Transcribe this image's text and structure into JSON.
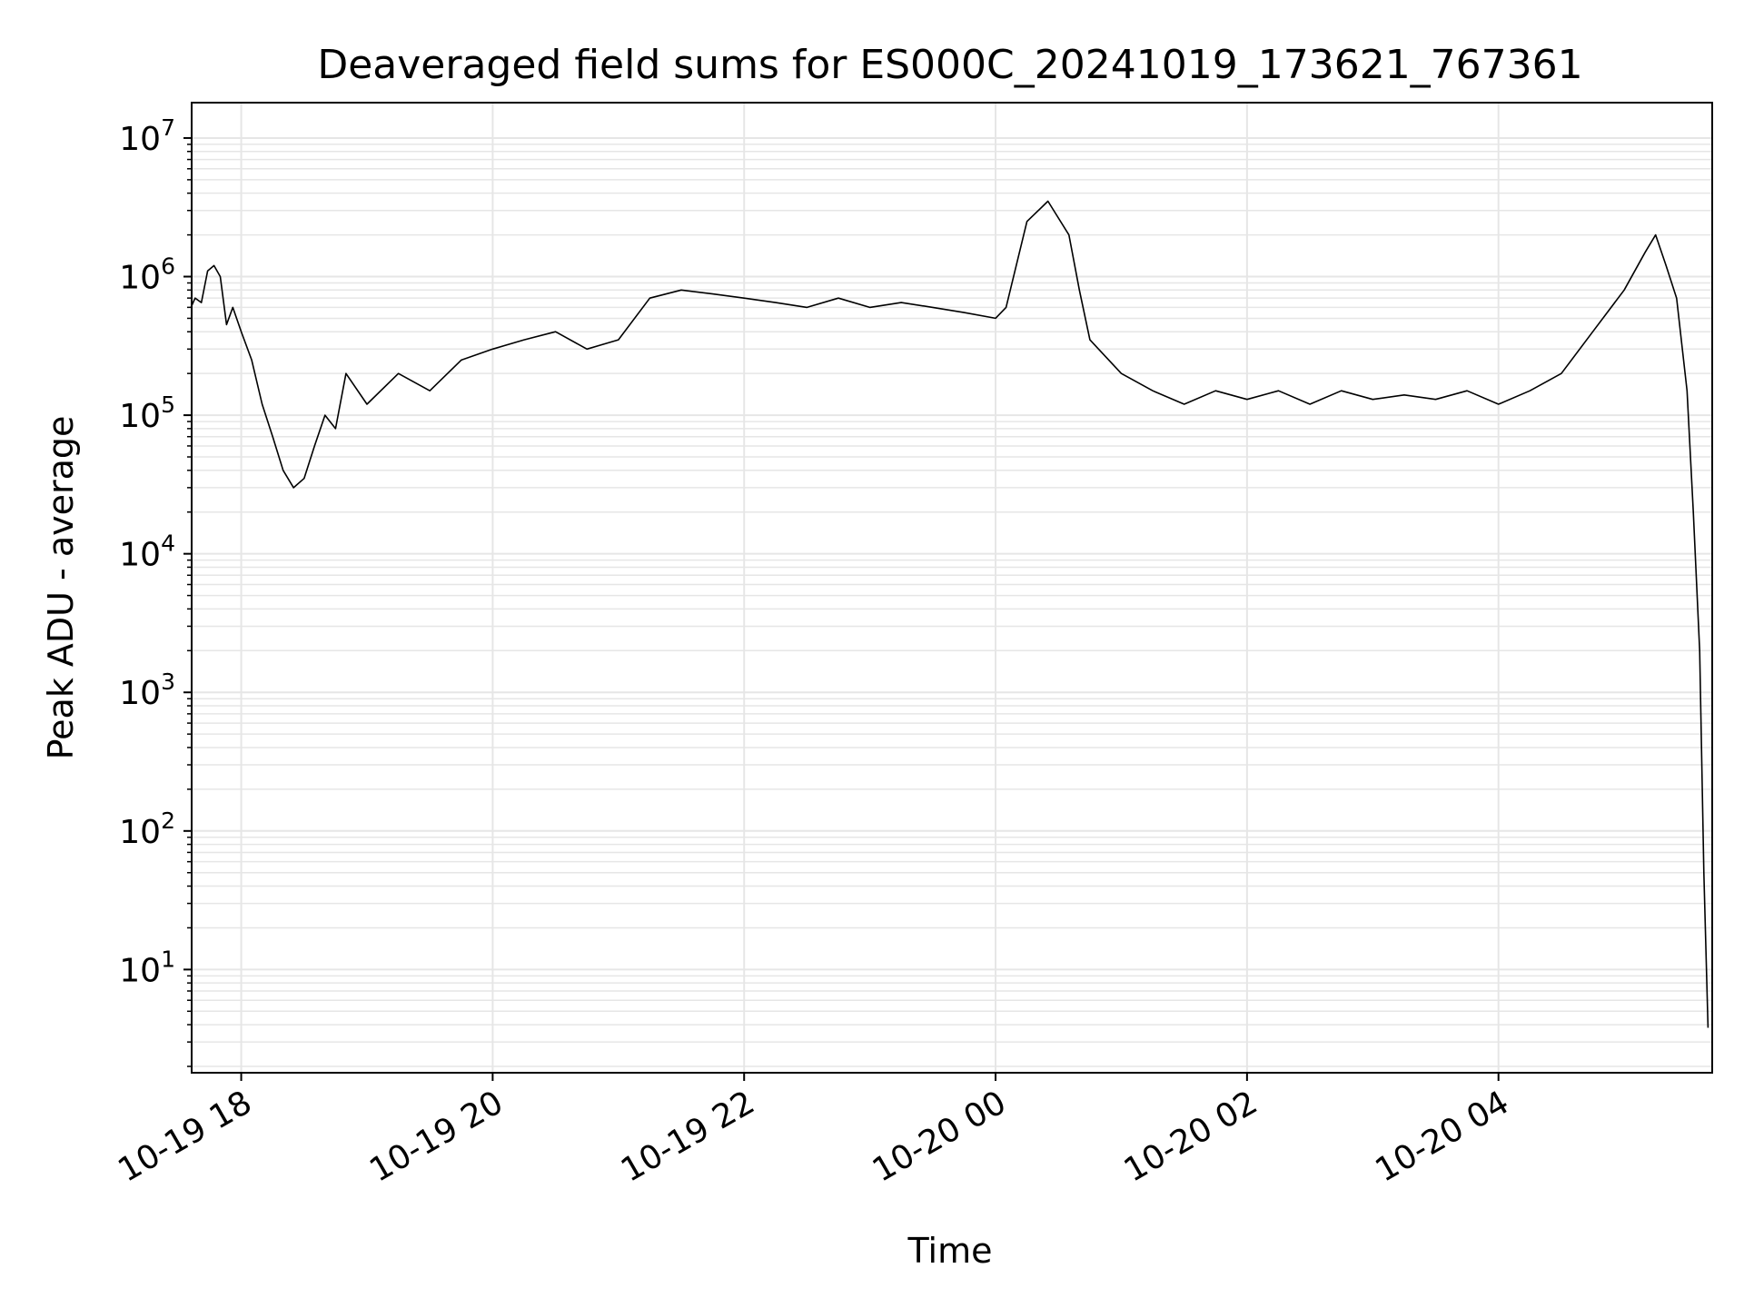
{
  "chart_data": {
    "type": "line",
    "title": "Deaveraged field sums for ES000C_20241019_173621_767361",
    "xlabel": "Time",
    "ylabel": "Peak ADU - average",
    "yscale": "log",
    "ylim": [
      1.8,
      18000000
    ],
    "xlim": [
      "2024-10-19 17:36:21",
      "2024-10-20 05:42:00"
    ],
    "grid": true,
    "line_color": "#000000",
    "grid_color": "#e6e6e6",
    "x_ticks": [
      {
        "t": "2024-10-19 18:00",
        "label": "10-19 18"
      },
      {
        "t": "2024-10-19 20:00",
        "label": "10-19 20"
      },
      {
        "t": "2024-10-19 22:00",
        "label": "10-19 22"
      },
      {
        "t": "2024-10-20 00:00",
        "label": "10-20 00"
      },
      {
        "t": "2024-10-20 02:00",
        "label": "10-20 02"
      },
      {
        "t": "2024-10-20 04:00",
        "label": "10-20 04"
      }
    ],
    "y_ticks": [
      {
        "value": 10,
        "base": "10",
        "exp": "1"
      },
      {
        "value": 100,
        "base": "10",
        "exp": "2"
      },
      {
        "value": 1000,
        "base": "10",
        "exp": "3"
      },
      {
        "value": 10000,
        "base": "10",
        "exp": "4"
      },
      {
        "value": 100000,
        "base": "10",
        "exp": "5"
      },
      {
        "value": 1000000,
        "base": "10",
        "exp": "6"
      },
      {
        "value": 10000000,
        "base": "10",
        "exp": "7"
      }
    ],
    "series": [
      {
        "points": [
          [
            "2024-10-19 17:36",
            600000
          ],
          [
            "2024-10-19 17:38",
            700000
          ],
          [
            "2024-10-19 17:41",
            650000
          ],
          [
            "2024-10-19 17:44",
            1100000
          ],
          [
            "2024-10-19 17:47",
            1200000
          ],
          [
            "2024-10-19 17:50",
            1000000
          ],
          [
            "2024-10-19 17:53",
            450000
          ],
          [
            "2024-10-19 17:56",
            600000
          ],
          [
            "2024-10-19 18:00",
            400000
          ],
          [
            "2024-10-19 18:05",
            250000
          ],
          [
            "2024-10-19 18:10",
            120000
          ],
          [
            "2024-10-19 18:15",
            70000
          ],
          [
            "2024-10-19 18:20",
            40000
          ],
          [
            "2024-10-19 18:25",
            30000
          ],
          [
            "2024-10-19 18:30",
            35000
          ],
          [
            "2024-10-19 18:35",
            60000
          ],
          [
            "2024-10-19 18:40",
            100000
          ],
          [
            "2024-10-19 18:45",
            80000
          ],
          [
            "2024-10-19 18:50",
            200000
          ],
          [
            "2024-10-19 19:00",
            120000
          ],
          [
            "2024-10-19 19:15",
            200000
          ],
          [
            "2024-10-19 19:30",
            150000
          ],
          [
            "2024-10-19 19:45",
            250000
          ],
          [
            "2024-10-19 20:00",
            300000
          ],
          [
            "2024-10-19 20:15",
            350000
          ],
          [
            "2024-10-19 20:30",
            400000
          ],
          [
            "2024-10-19 20:45",
            300000
          ],
          [
            "2024-10-19 21:00",
            350000
          ],
          [
            "2024-10-19 21:15",
            700000
          ],
          [
            "2024-10-19 21:30",
            800000
          ],
          [
            "2024-10-19 21:45",
            750000
          ],
          [
            "2024-10-19 22:00",
            700000
          ],
          [
            "2024-10-19 22:15",
            650000
          ],
          [
            "2024-10-19 22:30",
            600000
          ],
          [
            "2024-10-19 22:45",
            700000
          ],
          [
            "2024-10-19 23:00",
            600000
          ],
          [
            "2024-10-19 23:15",
            650000
          ],
          [
            "2024-10-19 23:30",
            600000
          ],
          [
            "2024-10-19 23:45",
            550000
          ],
          [
            "2024-10-20 00:00",
            500000
          ],
          [
            "2024-10-20 00:05",
            600000
          ],
          [
            "2024-10-20 00:15",
            2500000
          ],
          [
            "2024-10-20 00:25",
            3500000
          ],
          [
            "2024-10-20 00:35",
            2000000
          ],
          [
            "2024-10-20 00:40",
            800000
          ],
          [
            "2024-10-20 00:45",
            350000
          ],
          [
            "2024-10-20 01:00",
            200000
          ],
          [
            "2024-10-20 01:15",
            150000
          ],
          [
            "2024-10-20 01:30",
            120000
          ],
          [
            "2024-10-20 01:45",
            150000
          ],
          [
            "2024-10-20 02:00",
            130000
          ],
          [
            "2024-10-20 02:15",
            150000
          ],
          [
            "2024-10-20 02:30",
            120000
          ],
          [
            "2024-10-20 02:45",
            150000
          ],
          [
            "2024-10-20 03:00",
            130000
          ],
          [
            "2024-10-20 03:15",
            140000
          ],
          [
            "2024-10-20 03:30",
            130000
          ],
          [
            "2024-10-20 03:45",
            150000
          ],
          [
            "2024-10-20 04:00",
            120000
          ],
          [
            "2024-10-20 04:15",
            150000
          ],
          [
            "2024-10-20 04:30",
            200000
          ],
          [
            "2024-10-20 04:45",
            400000
          ],
          [
            "2024-10-20 05:00",
            800000
          ],
          [
            "2024-10-20 05:10",
            1500000
          ],
          [
            "2024-10-20 05:15",
            2000000
          ],
          [
            "2024-10-20 05:20",
            1200000
          ],
          [
            "2024-10-20 05:25",
            700000
          ],
          [
            "2024-10-20 05:30",
            150000
          ],
          [
            "2024-10-20 05:33",
            20000
          ],
          [
            "2024-10-20 05:36",
            2000
          ],
          [
            "2024-10-20 05:38",
            50
          ],
          [
            "2024-10-20 05:40",
            3.8
          ]
        ]
      }
    ]
  }
}
